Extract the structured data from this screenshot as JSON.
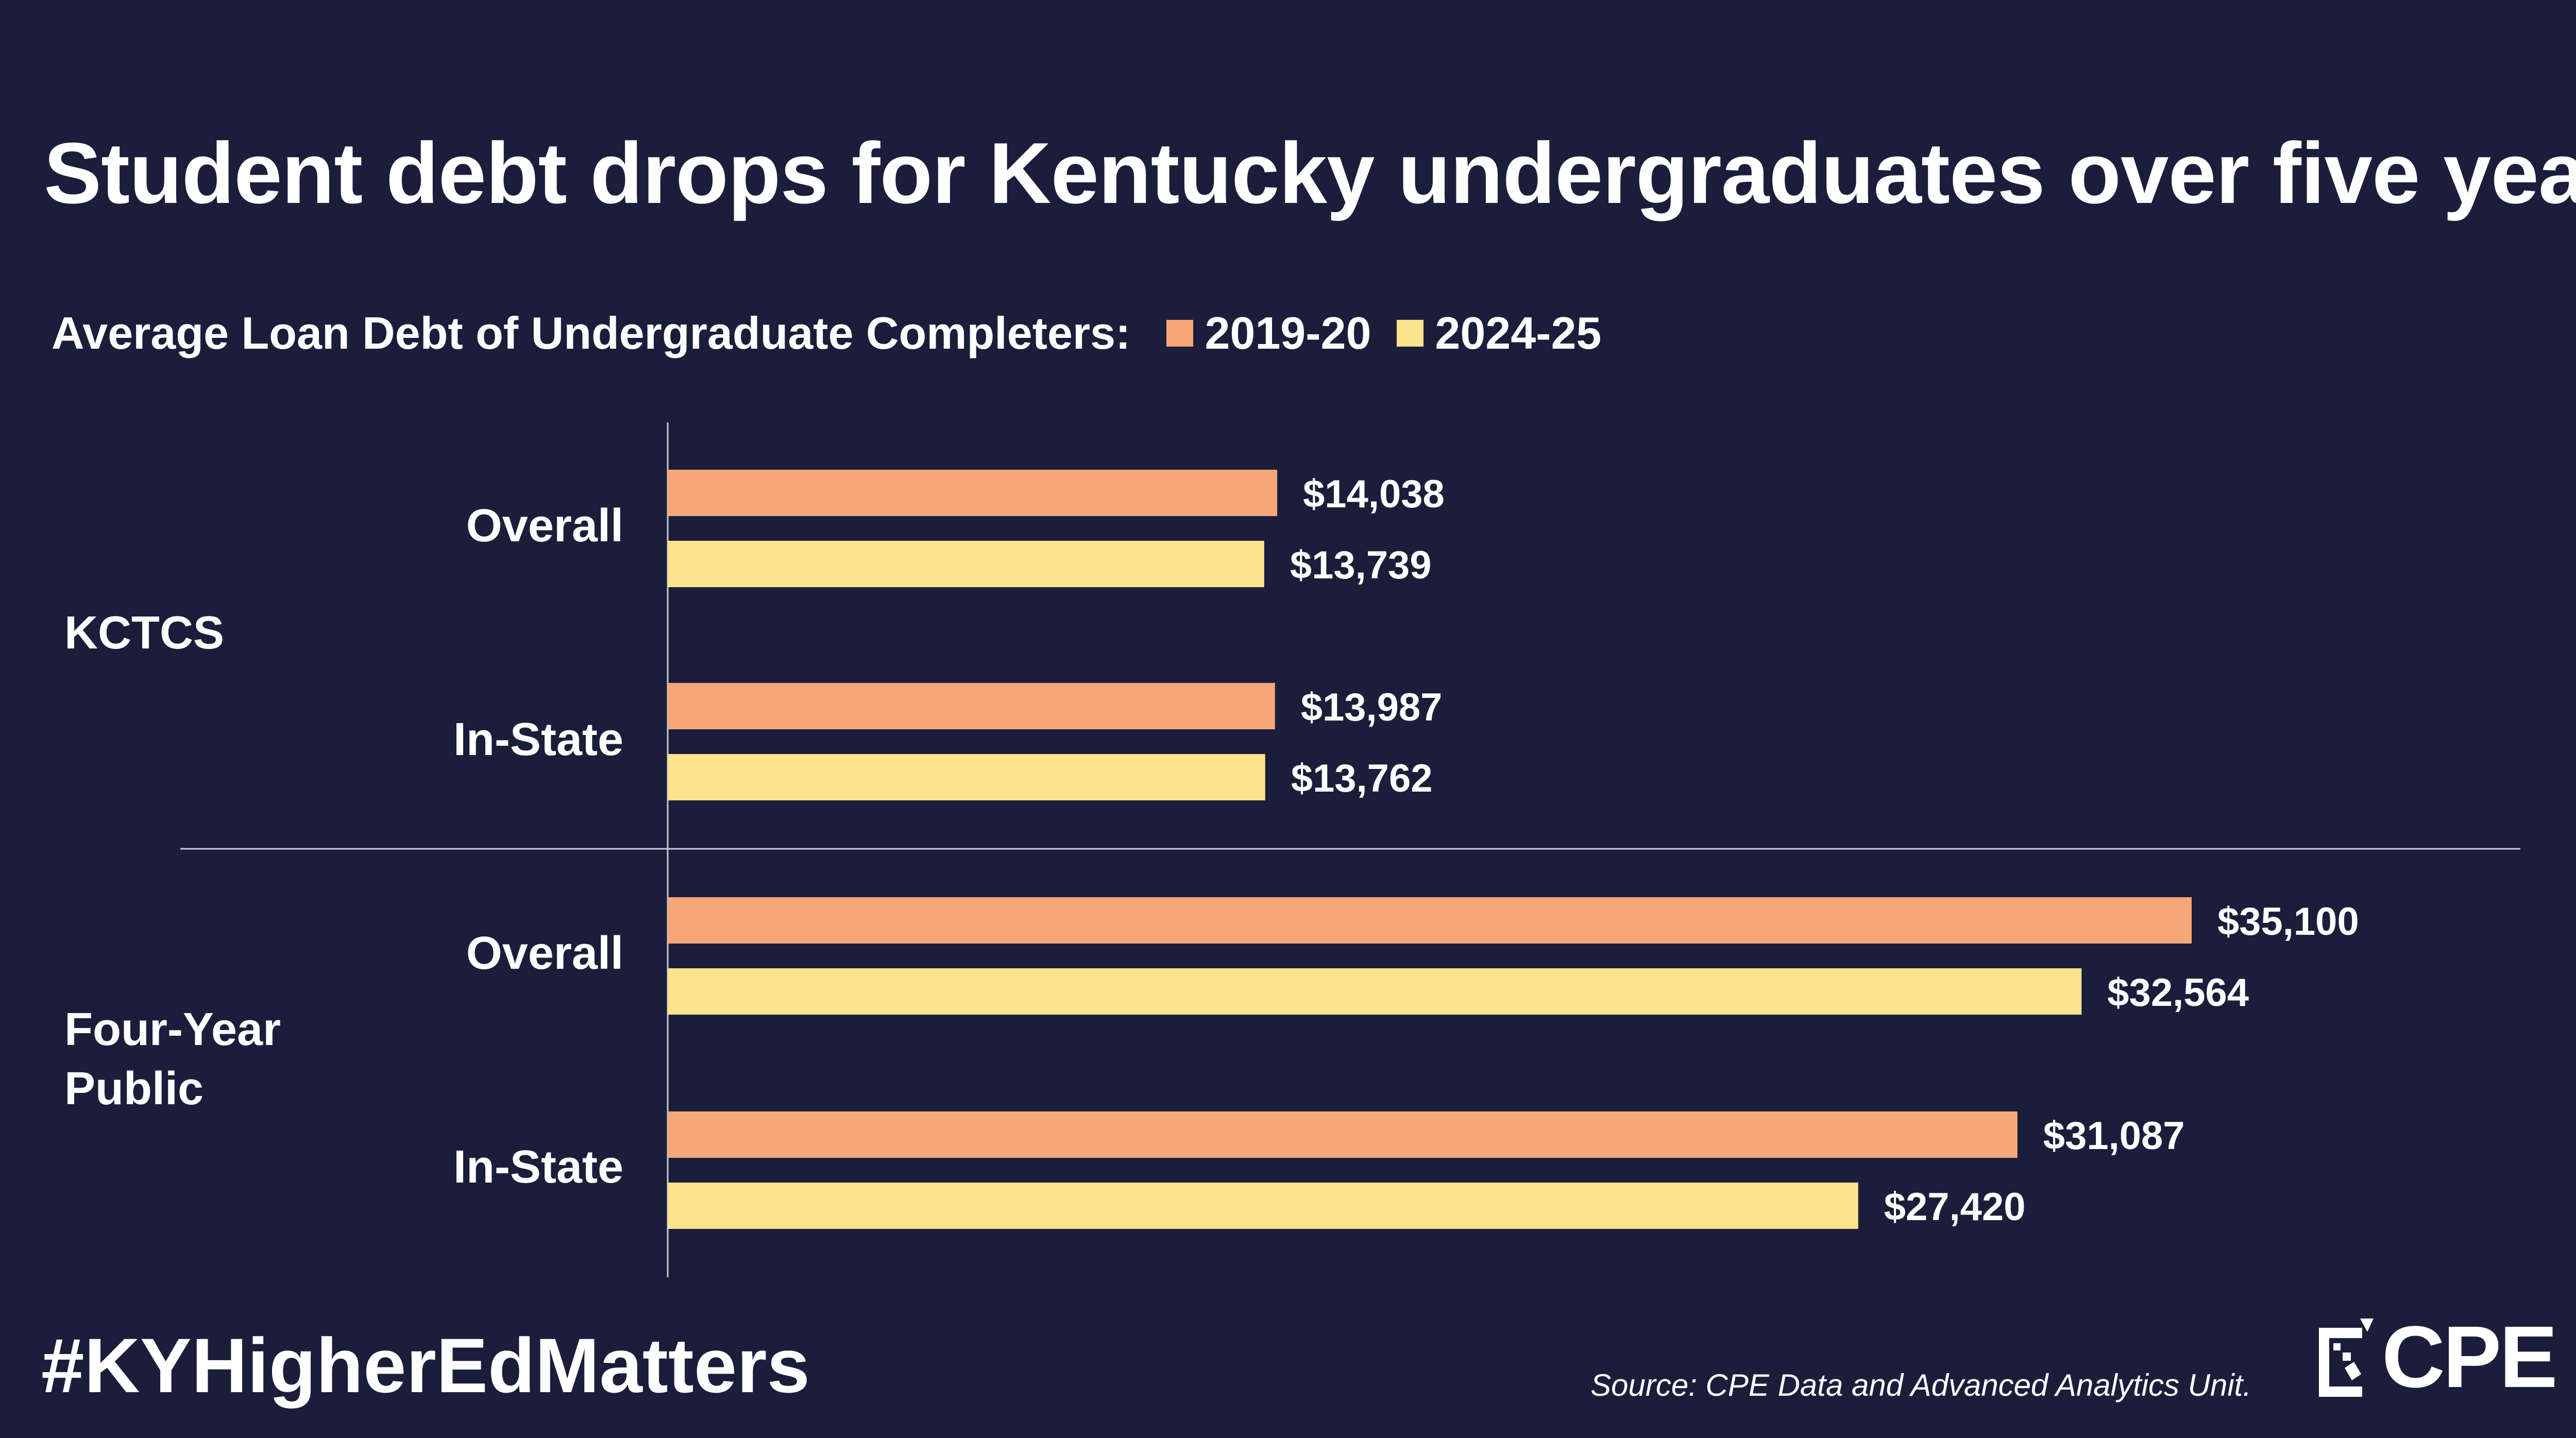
{
  "title": "Student debt drops for Kentucky undergraduates over five years",
  "legend": {
    "label": "Average Loan Debt of Undergraduate Completers:",
    "items": [
      {
        "name": "2019-20",
        "color": "#f5a77a"
      },
      {
        "name": "2024-25",
        "color": "#fde38c"
      }
    ]
  },
  "groups": [
    {
      "name": "KCTCS",
      "categories": [
        "Overall",
        "In-State"
      ]
    },
    {
      "name": "Four-Year Public",
      "name_lines": [
        "Four-Year",
        "Public"
      ],
      "categories": [
        "Overall",
        "In-State"
      ]
    }
  ],
  "chart_data": {
    "type": "bar",
    "orientation": "horizontal",
    "title": "Student debt drops for Kentucky undergraduates over five years",
    "subtitle": "Average Loan Debt of Undergraduate Completers",
    "categories": [
      "KCTCS Overall",
      "KCTCS In-State",
      "Four-Year Public Overall",
      "Four-Year Public In-State"
    ],
    "series": [
      {
        "name": "2019-20",
        "color": "#f5a77a",
        "values": [
          14038,
          13987,
          35100,
          31087
        ],
        "labels": [
          "$14,038",
          "$13,987",
          "$35,100",
          "$31,087"
        ]
      },
      {
        "name": "2024-25",
        "color": "#fde38c",
        "values": [
          13739,
          13762,
          32564,
          27420
        ],
        "labels": [
          "$13,739",
          "$13,762",
          "$32,564",
          "$27,420"
        ]
      }
    ],
    "xlim": [
      0,
      40000
    ],
    "grid": false,
    "legend_position": "top-left"
  },
  "footer": {
    "hashtag": "#KYHigherEdMatters",
    "source": "Source: CPE Data and Advanced Analytics Unit.",
    "logo_text": "CPE"
  }
}
